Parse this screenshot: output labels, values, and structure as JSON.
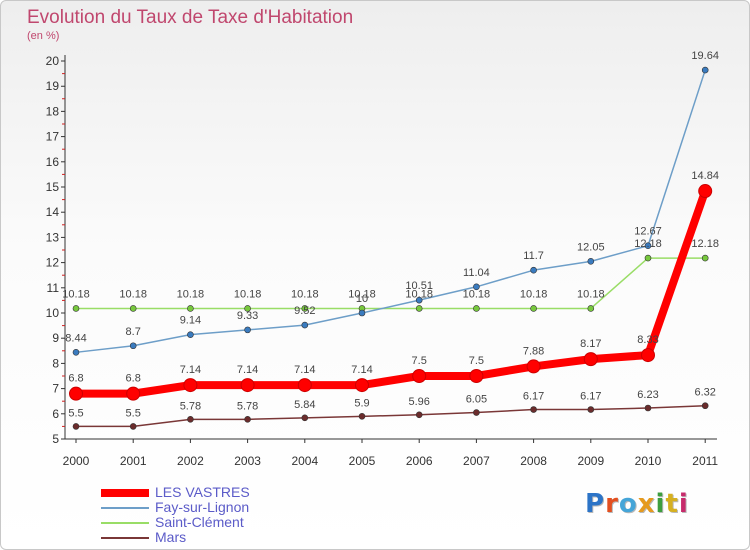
{
  "title": "Evolution du Taux de Taxe d'Habitation",
  "unit_label": "(en %)",
  "logo": {
    "text": "Proxiti",
    "colors": [
      "#2c74c7",
      "#e34f1f",
      "#45a5d8",
      "#e59a1e",
      "#3d9e3f",
      "#d6b020",
      "#c72b6b"
    ]
  },
  "chart_data": {
    "type": "line",
    "x": [
      "2000",
      "2001",
      "2002",
      "2003",
      "2004",
      "2005",
      "2006",
      "2007",
      "2008",
      "2009",
      "2010",
      "2011"
    ],
    "ylim": [
      5,
      20
    ],
    "y_ticks": [
      5,
      6,
      7,
      8,
      9,
      10,
      11,
      12,
      13,
      14,
      15,
      16,
      17,
      18,
      19,
      20
    ],
    "grid": false,
    "legend_position": "bottom-left",
    "series": [
      {
        "name": "LES VASTRES",
        "color": "#ff0000",
        "values": [
          6.8,
          6.8,
          7.14,
          7.14,
          7.14,
          7.14,
          7.5,
          7.5,
          7.88,
          8.17,
          8.33,
          14.84
        ],
        "labels": [
          "6.8",
          "6.8",
          "7.14",
          "7.14",
          "7.14",
          "7.14",
          "7.5",
          "7.5",
          "7.88",
          "8.17",
          "8.33",
          "14.84"
        ],
        "bold": true
      },
      {
        "name": "Fay-sur-Lignon",
        "color": "#6d9ec8",
        "marker_color": "#3a7bbf",
        "values": [
          8.44,
          8.7,
          9.14,
          9.33,
          9.52,
          10.0,
          10.51,
          11.04,
          11.7,
          12.05,
          12.67,
          19.64
        ],
        "labels": [
          "8.44",
          "8.7",
          "9.14",
          "9.33",
          "9.52",
          "10",
          "10.51",
          "11.04",
          "11.7",
          "12.05",
          "12.67",
          "19.64"
        ]
      },
      {
        "name": "Saint-Clément",
        "color": "#99dd66",
        "marker_color": "#77c83d",
        "values": [
          10.18,
          10.18,
          10.18,
          10.18,
          10.18,
          10.18,
          10.18,
          10.18,
          10.18,
          10.18,
          12.18,
          12.18
        ],
        "labels": [
          "10.18",
          "10.18",
          "10.18",
          "10.18",
          "10.18",
          "10.18",
          "10.18",
          "10.18",
          "10.18",
          "10.18",
          "12.18",
          "12.18"
        ]
      },
      {
        "name": "Mars",
        "color": "#7a3737",
        "marker_color": "#6b2c2c",
        "values": [
          5.5,
          5.5,
          5.78,
          5.78,
          5.84,
          5.9,
          5.96,
          6.05,
          6.17,
          6.17,
          6.23,
          6.32
        ],
        "labels": [
          "5.5",
          "5.5",
          "5.78",
          "5.78",
          "5.84",
          "5.9",
          "5.96",
          "6.05",
          "6.17",
          "6.17",
          "6.23",
          "6.32"
        ]
      }
    ]
  }
}
